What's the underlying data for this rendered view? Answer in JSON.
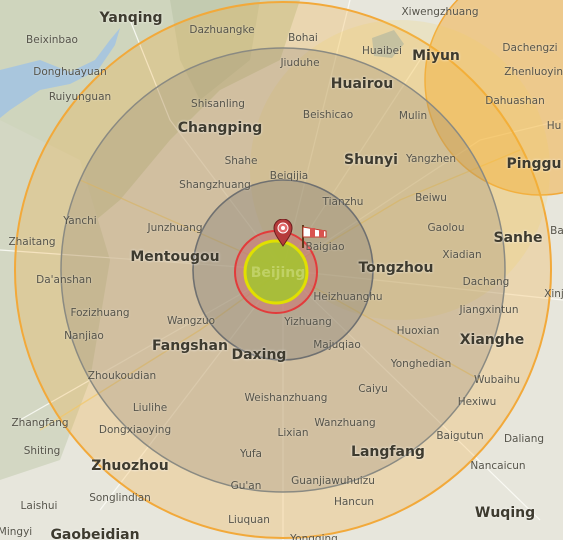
{
  "map": {
    "center_label": "Beijing",
    "labels": {
      "major": [
        "Yanqing",
        "Huairou",
        "Miyun",
        "Changping",
        "Shunyi",
        "Pinggu",
        "Mentougou",
        "Tongzhou",
        "Sanhe",
        "Fangshan",
        "Daxing",
        "Xianghe",
        "Langfang",
        "Zhuozhou",
        "Wuqing",
        "Gaobeidian"
      ],
      "minor": [
        "Xiwengzhuang",
        "Dazhuangke",
        "Bohai",
        "Beixinbao",
        "Donghuayuan",
        "Jiuduhe",
        "Huaibei",
        "Dachengzi",
        "Zhenluoying",
        "Ruiyunguan",
        "Dahuashan",
        "Hu",
        "Shisanling",
        "Beishicao",
        "Mulin",
        "Shahe",
        "Yangzhen",
        "Beiqijia",
        "Shangzhuang",
        "Tianzhu",
        "Beiwu",
        "Yanchi",
        "Junzhuang",
        "Gaolou",
        "Zhaitang",
        "Baigiao",
        "Xiadian",
        "Ba",
        "Da'anshan",
        "Heizhuanghu",
        "Dachang",
        "Xinj",
        "Fozizhuang",
        "Wangzuo",
        "Jiangxintun",
        "Nanjiao",
        "Yizhuang",
        "Huoxian",
        "Majuqiao",
        "Yonghedian",
        "Zhoukoudian",
        "Caiyu",
        "Wubaihu",
        "Liulihe",
        "Weishanzhuang",
        "Hexiwu",
        "Zhangfang",
        "Dongxiaoying",
        "Wanzhuang",
        "Baigutun",
        "Daliang",
        "Shiting",
        "Lixian",
        "Yufa",
        "Nancaicun",
        "Gu'an",
        "Guanjiawuhuizu",
        "Laishui",
        "Songlindian",
        "Hancun",
        "Liuquan",
        "Mingyi",
        "Yongqing"
      ]
    },
    "blast_rings": [
      {
        "name": "fireball",
        "color": "#e1e000"
      },
      {
        "name": "radiation",
        "color": "#7fbe3c"
      },
      {
        "name": "heavy-blast",
        "color": "#e23b3b"
      },
      {
        "name": "moderate-blast",
        "color": "#8a8a82"
      },
      {
        "name": "thermal",
        "color": "#f2a93a"
      }
    ],
    "secondary_blast_center": "Miyun",
    "markers": [
      "pin-icon",
      "windsock-icon"
    ]
  }
}
